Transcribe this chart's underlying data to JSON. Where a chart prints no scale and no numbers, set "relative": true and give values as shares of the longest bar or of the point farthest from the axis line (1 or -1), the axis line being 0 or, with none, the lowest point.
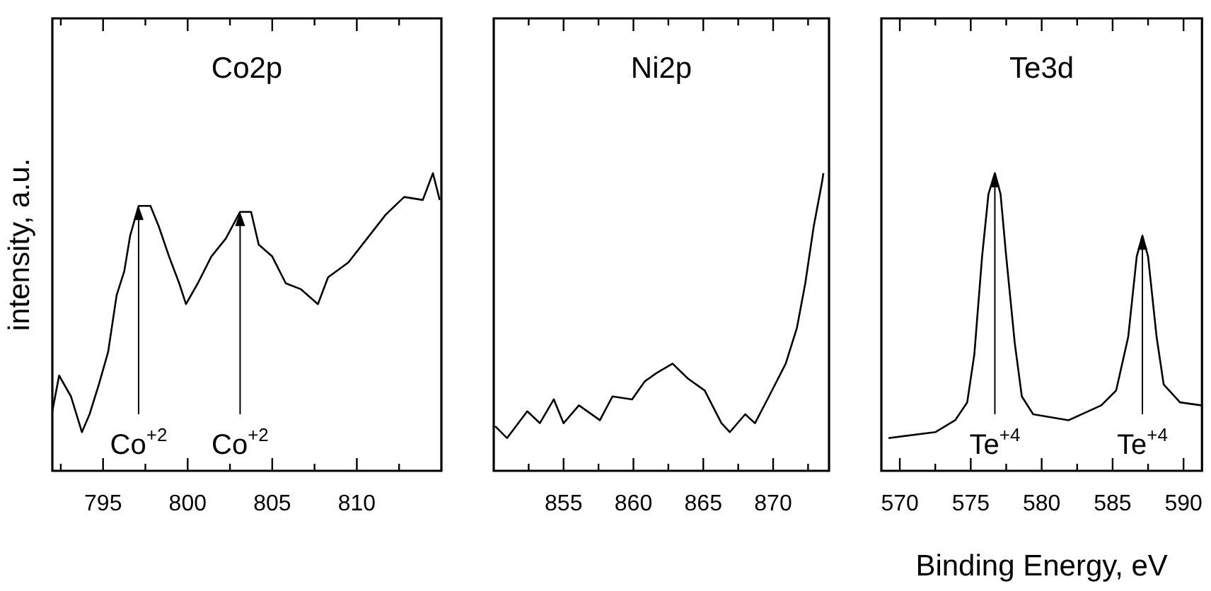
{
  "chart_data": [
    {
      "type": "line",
      "title": "Co2p",
      "ylabel": "intensity, a.u.",
      "relative": true,
      "tick_labels": "x",
      "color": "#000000",
      "xlim": [
        792,
        815
      ],
      "xticks": [
        {
          "value": 792.5,
          "label": null
        },
        795,
        {
          "value": 797.5,
          "label": null
        },
        800,
        {
          "value": 802.5,
          "label": null
        },
        805,
        {
          "value": 807.5,
          "label": null
        },
        810,
        {
          "value": 812.5,
          "label": null
        }
      ],
      "x": [
        792.0,
        792.4,
        793.1,
        793.75,
        794.2,
        794.75,
        795.3,
        795.8,
        796.25,
        796.6,
        797.1,
        797.8,
        798.3,
        798.9,
        799.5,
        799.9,
        800.6,
        801.4,
        802.25,
        803.1,
        803.75,
        804.2,
        805.0,
        805.8,
        806.7,
        807.7,
        808.3,
        809.5,
        810.6,
        811.7,
        812.8,
        813.9,
        814.5,
        814.9
      ],
      "values": [
        0.2,
        0.32,
        0.25,
        0.13,
        0.19,
        0.29,
        0.4,
        0.59,
        0.67,
        0.79,
        0.89,
        0.89,
        0.82,
        0.72,
        0.63,
        0.56,
        0.63,
        0.72,
        0.78,
        0.87,
        0.87,
        0.76,
        0.72,
        0.63,
        0.61,
        0.56,
        0.65,
        0.7,
        0.78,
        0.86,
        0.92,
        0.91,
        1.0,
        0.91
      ],
      "annotations": [
        {
          "text": "Co$^{+2}$",
          "x": 797.1,
          "y": 0.89
        },
        {
          "text": "Co$^{+2}$",
          "x": 803.1,
          "y": 0.87
        }
      ]
    },
    {
      "type": "line",
      "title": "Ni2p",
      "relative": true,
      "tick_labels": "x",
      "color": "#000000",
      "xlim": [
        850,
        874
      ],
      "xticks": [
        {
          "value": 852.5,
          "label": null
        },
        855,
        {
          "value": 857.5,
          "label": null
        },
        860,
        {
          "value": 862.5,
          "label": null
        },
        865,
        {
          "value": 867.5,
          "label": null
        },
        870,
        {
          "value": 872.5,
          "label": null
        }
      ],
      "x": [
        850.1,
        850.95,
        852.4,
        853.3,
        854.3,
        855.0,
        856.1,
        857.6,
        858.5,
        859.9,
        860.8,
        861.7,
        862.8,
        863.9,
        865.1,
        866.3,
        866.9,
        868.0,
        868.7,
        869.7,
        870.9,
        871.7,
        872.3,
        872.9,
        873.5,
        873.6
      ],
      "values": [
        0.15,
        0.11,
        0.2,
        0.16,
        0.24,
        0.16,
        0.22,
        0.17,
        0.25,
        0.24,
        0.3,
        0.33,
        0.36,
        0.31,
        0.27,
        0.16,
        0.13,
        0.19,
        0.16,
        0.25,
        0.36,
        0.48,
        0.63,
        0.82,
        0.97,
        1.0
      ]
    },
    {
      "type": "line",
      "title": "Te3d",
      "xlabel": "Binding Energy, eV",
      "relative": true,
      "tick_labels": "x",
      "color": "#000000",
      "xlim": [
        568.7,
        591.3
      ],
      "xticks": [
        570,
        {
          "value": 572.5,
          "label": null
        },
        575,
        {
          "value": 577.5,
          "label": null
        },
        580,
        {
          "value": 582.5,
          "label": null
        },
        585,
        {
          "value": 587.5,
          "label": null
        },
        590
      ],
      "x": [
        569.2,
        572.5,
        573.9,
        574.75,
        575.25,
        575.8,
        576.25,
        576.7,
        577.1,
        577.5,
        578.1,
        578.6,
        579.4,
        581.9,
        584.2,
        585.25,
        586.1,
        586.7,
        587.1,
        587.5,
        588.1,
        588.6,
        589.75,
        591.25
      ],
      "values": [
        0.11,
        0.13,
        0.17,
        0.23,
        0.39,
        0.72,
        0.93,
        1.0,
        0.93,
        0.72,
        0.43,
        0.25,
        0.19,
        0.17,
        0.22,
        0.27,
        0.45,
        0.72,
        0.79,
        0.72,
        0.45,
        0.29,
        0.23,
        0.22
      ],
      "annotations": [
        {
          "text": "Te$^{+4}$",
          "x": 576.7,
          "y": 1.0
        },
        {
          "text": "Te$^{+4}$",
          "x": 587.1,
          "y": 0.79
        }
      ]
    }
  ]
}
